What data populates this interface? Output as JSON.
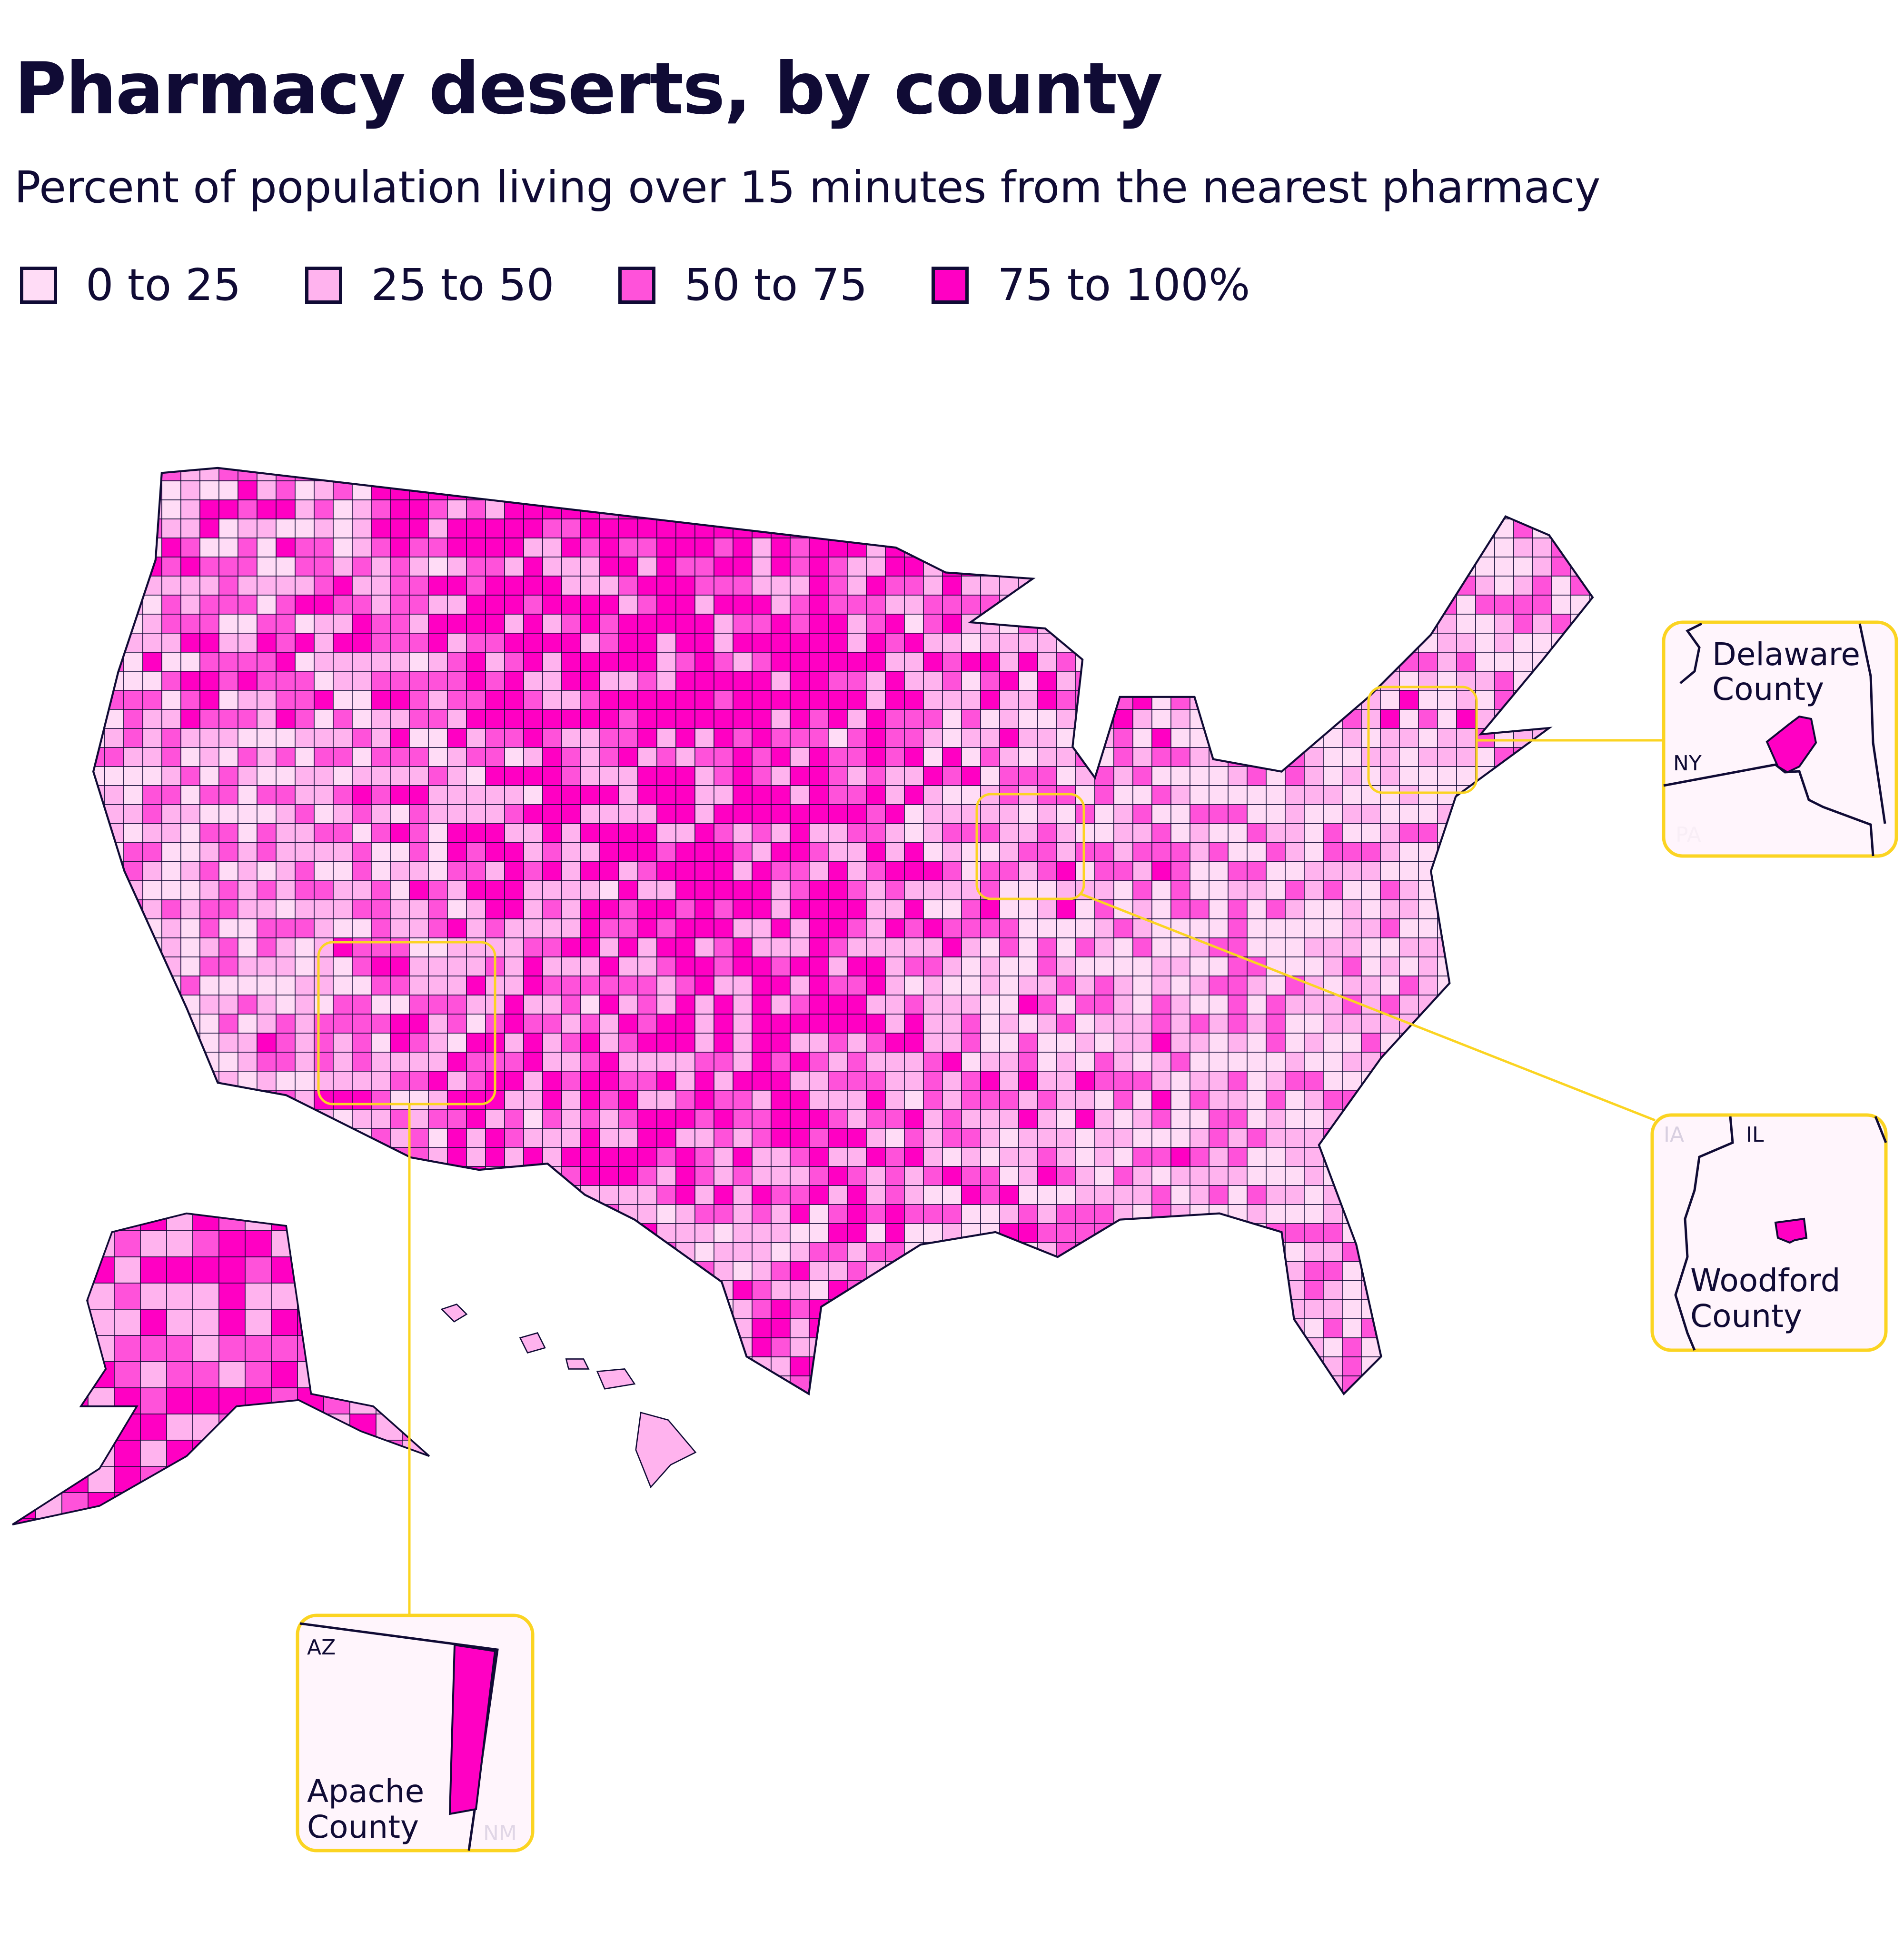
{
  "title": "Pharmacy deserts, by county",
  "subtitle": "Percent of population living over 15 minutes from the nearest pharmacy",
  "legend": [
    {
      "label": "0 to 25",
      "color": "#ffdcf6"
    },
    {
      "label": "25 to 50",
      "color": "#ffb3ee"
    },
    {
      "label": "50 to 75",
      "color": "#ff52da"
    },
    {
      "label": "75 to 100%",
      "color": "#ff00c3"
    }
  ],
  "colors": {
    "highlight": "#ff00c3",
    "callout": "#fbd422",
    "border": "#100b35"
  },
  "insets": {
    "delaware": {
      "county": [
        "Delaware",
        "County"
      ],
      "state": "NY",
      "neighbor": "PA"
    },
    "woodford": {
      "county": [
        "Woodford",
        "County"
      ],
      "state": "IL",
      "neighbor": "IA"
    },
    "apache": {
      "county": [
        "Apache",
        "County"
      ],
      "state": "AZ",
      "neighbor": "NM"
    }
  }
}
